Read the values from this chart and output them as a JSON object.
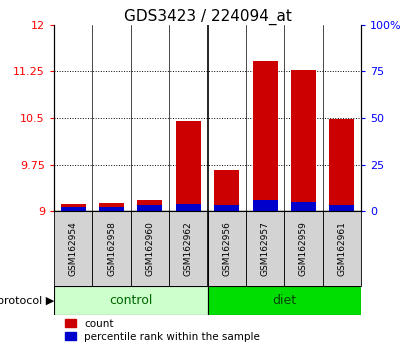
{
  "title": "GDS3423 / 224094_at",
  "samples": [
    "GSM162954",
    "GSM162958",
    "GSM162960",
    "GSM162962",
    "GSM162956",
    "GSM162957",
    "GSM162959",
    "GSM162961"
  ],
  "count_values": [
    9.12,
    9.13,
    9.18,
    10.45,
    9.67,
    11.42,
    11.28,
    10.48
  ],
  "percentile_values": [
    9.07,
    9.07,
    9.1,
    9.12,
    9.1,
    9.18,
    9.15,
    9.1
  ],
  "bar_base": 9.0,
  "ylim_left": [
    9.0,
    12.0
  ],
  "ylim_right": [
    0,
    100
  ],
  "yticks_left": [
    9.0,
    9.75,
    10.5,
    11.25,
    12.0
  ],
  "ytick_labels_left": [
    "9",
    "9.75",
    "10.5",
    "11.25",
    "12"
  ],
  "yticks_right": [
    0,
    25,
    50,
    75,
    100
  ],
  "ytick_labels_right": [
    "0",
    "25",
    "50",
    "75",
    "100%"
  ],
  "ctrl_color_light": "#ccffcc",
  "ctrl_color_dark": "#00dd00",
  "bar_color_red": "#cc0000",
  "bar_color_blue": "#0000cc",
  "title_fontsize": 11,
  "bar_width": 0.65,
  "protocol_label": "protocol",
  "legend_count": "count",
  "legend_pct": "percentile rank within the sample",
  "n_control": 4,
  "n_diet": 4,
  "xticklabel_bg": "#d3d3d3"
}
